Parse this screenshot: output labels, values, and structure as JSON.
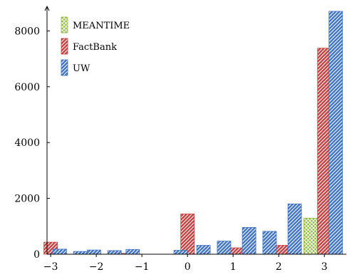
{
  "chart_data": {
    "type": "bar",
    "title": "",
    "xlabel": "",
    "ylabel": "",
    "categories": [
      -3,
      -2,
      -1,
      0,
      1,
      2,
      3
    ],
    "x_tick_labels": [
      "−3",
      "−2",
      "−1",
      "0",
      "1",
      "2",
      "3"
    ],
    "y_ticks": [
      0,
      2000,
      4000,
      6000,
      8000
    ],
    "y_tick_labels": [
      "0",
      "2000",
      "4000",
      "6000",
      "8000"
    ],
    "ylim": [
      0,
      8800
    ],
    "xlim": [
      -3.08,
      3.45
    ],
    "grid": false,
    "legend_position": "top-left",
    "series": [
      {
        "name": "MEANTIME",
        "color": "#8dbb3a",
        "pattern": "crosshatch",
        "points": [
          {
            "x": -0.1,
            "y": 60
          },
          {
            "x": 2.7,
            "y": 1290
          }
        ]
      },
      {
        "name": "FactBank",
        "color": "#c84040",
        "pattern": "diagonal",
        "points": [
          {
            "x": -3.0,
            "y": 430
          },
          {
            "x": -2.2,
            "y": 70
          },
          {
            "x": -1.5,
            "y": 30
          },
          {
            "x": 0.0,
            "y": 1440
          },
          {
            "x": 1.05,
            "y": 230
          },
          {
            "x": 2.05,
            "y": 320
          },
          {
            "x": 3.0,
            "y": 7380
          }
        ]
      },
      {
        "name": "UW",
        "color": "#3f74c7",
        "pattern": "diagonal",
        "points": [
          {
            "x": -2.8,
            "y": 180
          },
          {
            "x": -2.35,
            "y": 100
          },
          {
            "x": -2.05,
            "y": 150
          },
          {
            "x": -1.6,
            "y": 130
          },
          {
            "x": -1.2,
            "y": 170
          },
          {
            "x": -0.15,
            "y": 140
          },
          {
            "x": 0.35,
            "y": 320
          },
          {
            "x": 0.8,
            "y": 470
          },
          {
            "x": 1.35,
            "y": 960
          },
          {
            "x": 1.8,
            "y": 820
          },
          {
            "x": 2.35,
            "y": 1800
          },
          {
            "x": 3.25,
            "y": 8700
          }
        ]
      }
    ]
  }
}
